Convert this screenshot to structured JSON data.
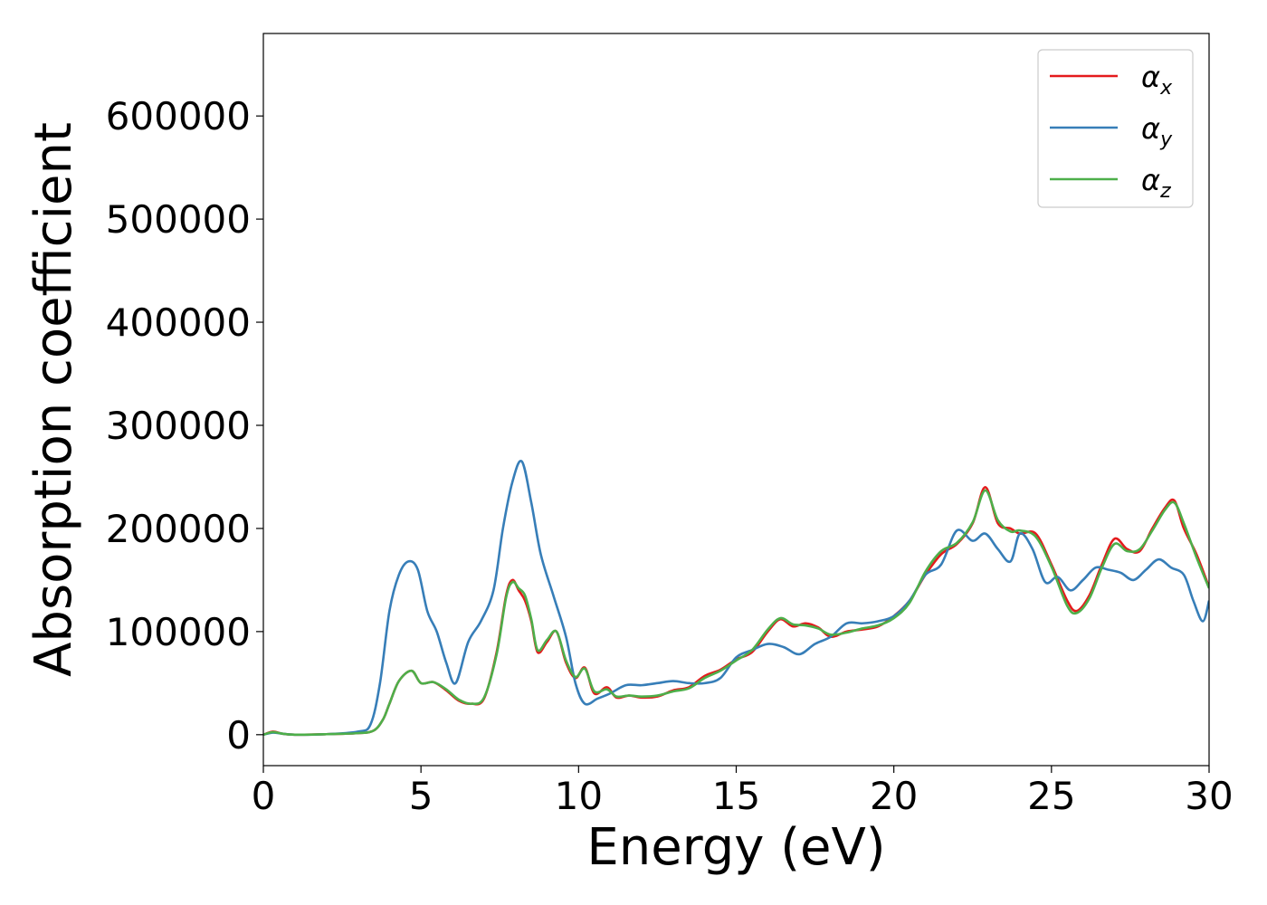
{
  "chart_data": {
    "type": "line",
    "title": "",
    "xlabel": "Energy (eV)",
    "ylabel": "Absorption coefficient",
    "xlim": [
      0,
      30
    ],
    "ylim": [
      -30000,
      680000
    ],
    "xticks": [
      0,
      5,
      10,
      15,
      20,
      25,
      30
    ],
    "yticks": [
      0,
      100000,
      200000,
      300000,
      400000,
      500000,
      600000
    ],
    "grid": false,
    "legend_position": "top-right",
    "series": [
      {
        "name": "α",
        "name_sub": "x",
        "color": "#e41a1c",
        "x": [
          0,
          0.3,
          0.6,
          1,
          2,
          3,
          3.5,
          3.8,
          4.0,
          4.3,
          4.7,
          5.0,
          5.4,
          5.8,
          6.2,
          6.6,
          7.0,
          7.4,
          7.7,
          7.9,
          8.1,
          8.3,
          8.5,
          8.7,
          9.0,
          9.3,
          9.6,
          9.9,
          10.2,
          10.5,
          10.9,
          11.2,
          11.6,
          12.0,
          12.5,
          13.0,
          13.5,
          14.0,
          14.5,
          15.0,
          15.5,
          16.0,
          16.4,
          16.8,
          17.2,
          17.6,
          18.0,
          18.5,
          19.0,
          19.5,
          20.0,
          20.5,
          21.0,
          21.5,
          22.0,
          22.5,
          22.9,
          23.3,
          23.7,
          24.0,
          24.5,
          25.0,
          25.5,
          25.8,
          26.2,
          26.6,
          27.0,
          27.4,
          27.8,
          28.2,
          28.6,
          28.9,
          29.2,
          29.6,
          30.0
        ],
        "values": [
          0,
          3000,
          1000,
          0,
          500,
          1500,
          4000,
          15000,
          30000,
          52000,
          62000,
          50000,
          51000,
          43000,
          33000,
          30000,
          35000,
          80000,
          135000,
          150000,
          140000,
          130000,
          110000,
          80000,
          90000,
          100000,
          70000,
          55000,
          65000,
          40000,
          46000,
          36000,
          38000,
          36000,
          37000,
          43000,
          46000,
          57000,
          63000,
          73000,
          80000,
          100000,
          112000,
          105000,
          108000,
          104000,
          95000,
          100000,
          102000,
          105000,
          115000,
          130000,
          155000,
          175000,
          185000,
          205000,
          240000,
          205000,
          200000,
          195000,
          195000,
          165000,
          130000,
          120000,
          135000,
          165000,
          190000,
          180000,
          178000,
          200000,
          220000,
          227000,
          200000,
          175000,
          143000
        ]
      },
      {
        "name": "α",
        "name_sub": "y",
        "color": "#377eb8",
        "x": [
          0,
          0.3,
          0.6,
          1,
          2,
          3,
          3.4,
          3.7,
          4.0,
          4.3,
          4.6,
          4.9,
          5.2,
          5.5,
          5.8,
          6.1,
          6.5,
          6.9,
          7.3,
          7.6,
          7.9,
          8.2,
          8.5,
          8.8,
          9.2,
          9.6,
          9.9,
          10.2,
          10.6,
          11.0,
          11.5,
          12.0,
          12.5,
          13.0,
          13.5,
          14.0,
          14.5,
          15.0,
          15.5,
          16.0,
          16.5,
          17.0,
          17.5,
          18.0,
          18.5,
          19.0,
          19.5,
          20.0,
          20.5,
          21.0,
          21.5,
          22.0,
          22.5,
          22.9,
          23.3,
          23.7,
          24.0,
          24.4,
          24.8,
          25.2,
          25.6,
          26.0,
          26.4,
          26.8,
          27.2,
          27.6,
          28.0,
          28.4,
          28.8,
          29.2,
          29.5,
          29.8,
          30.0
        ],
        "values": [
          0,
          2000,
          1000,
          0,
          500,
          3000,
          10000,
          50000,
          120000,
          155000,
          168000,
          160000,
          120000,
          100000,
          70000,
          50000,
          90000,
          110000,
          140000,
          200000,
          245000,
          265000,
          225000,
          175000,
          135000,
          95000,
          50000,
          30000,
          35000,
          40000,
          48000,
          48000,
          50000,
          52000,
          50000,
          50000,
          55000,
          75000,
          82000,
          88000,
          85000,
          78000,
          88000,
          95000,
          108000,
          108000,
          110000,
          115000,
          130000,
          155000,
          165000,
          198000,
          188000,
          195000,
          180000,
          168000,
          195000,
          180000,
          148000,
          153000,
          140000,
          150000,
          162000,
          160000,
          157000,
          150000,
          160000,
          170000,
          162000,
          155000,
          130000,
          110000,
          130000
        ]
      },
      {
        "name": "α",
        "name_sub": "z",
        "color": "#4daf4a",
        "x": [
          0,
          0.3,
          0.6,
          1,
          2,
          3,
          3.5,
          3.8,
          4.0,
          4.3,
          4.7,
          5.0,
          5.4,
          5.8,
          6.2,
          6.6,
          7.0,
          7.4,
          7.7,
          7.9,
          8.1,
          8.3,
          8.5,
          8.7,
          9.0,
          9.3,
          9.6,
          9.9,
          10.2,
          10.5,
          10.9,
          11.2,
          11.6,
          12.0,
          12.5,
          13.0,
          13.5,
          14.0,
          14.5,
          15.0,
          15.5,
          16.0,
          16.4,
          16.8,
          17.2,
          17.6,
          18.0,
          18.5,
          19.0,
          19.5,
          20.0,
          20.5,
          21.0,
          21.5,
          22.0,
          22.5,
          22.9,
          23.3,
          23.7,
          24.0,
          24.5,
          25.0,
          25.5,
          25.8,
          26.2,
          26.6,
          27.0,
          27.4,
          27.8,
          28.2,
          28.6,
          28.9,
          29.2,
          29.6,
          30.0
        ],
        "values": [
          0,
          2500,
          1000,
          0,
          500,
          1500,
          4000,
          15000,
          30000,
          52000,
          62000,
          50000,
          51000,
          44000,
          34000,
          30000,
          36000,
          78000,
          133000,
          148000,
          142000,
          135000,
          112000,
          82000,
          92000,
          100000,
          72000,
          56000,
          64000,
          42000,
          44000,
          37000,
          38000,
          37000,
          38000,
          42000,
          45000,
          55000,
          62000,
          72000,
          82000,
          102000,
          113000,
          107000,
          106000,
          103000,
          97000,
          99000,
          103000,
          106000,
          113000,
          128000,
          158000,
          178000,
          186000,
          206000,
          237000,
          208000,
          197000,
          198000,
          192000,
          163000,
          125000,
          118000,
          132000,
          162000,
          185000,
          178000,
          180000,
          198000,
          218000,
          225000,
          205000,
          172000,
          142000
        ]
      }
    ]
  }
}
